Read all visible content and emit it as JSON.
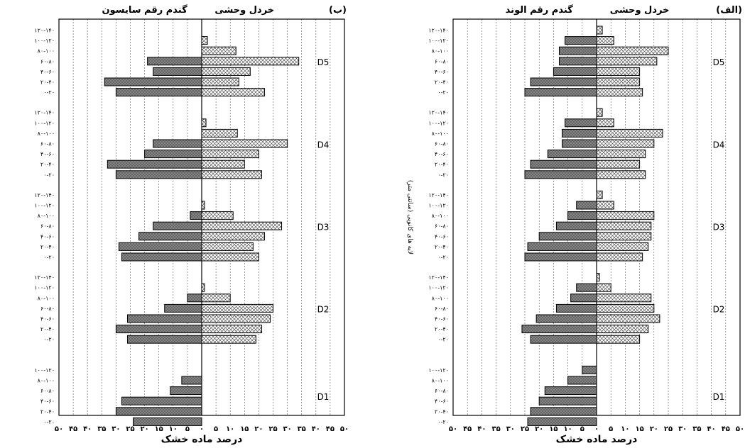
{
  "chart_data": [
    {
      "type": "bar",
      "panel_label": "(ب)",
      "cultivar_label": "گندم رقم سایسون",
      "weed_label": "خردل وحشی",
      "xlabel": "درصد ماده خشک",
      "ylabel": "",
      "xlim": [
        -50,
        50
      ],
      "x_ticks": [
        "۵۰",
        "۴۵",
        "۴۰",
        "۳۵",
        "۳۰",
        "۲۵",
        "۲۰",
        "۱۵",
        "۱۰",
        "۵",
        "۰",
        "۵",
        "۱۰",
        "۱۵",
        "۲۰",
        "۲۵",
        "۳۰",
        "۳۵",
        "۴۰",
        "۴۵",
        "۵۰"
      ],
      "grid": true,
      "groups": [
        {
          "name": "D5",
          "layers": [
            "۱۲۰-۱۴۰",
            "۱۰۰-۱۲۰",
            "۸۰-۱۰۰",
            "۶۰-۸۰",
            "۴۰-۶۰",
            "۲۰-۴۰",
            "۰-۲۰"
          ],
          "wheat": [
            0,
            0,
            0,
            19,
            17,
            34,
            30
          ],
          "mustard": [
            0,
            2,
            12,
            34,
            17,
            13,
            22
          ]
        },
        {
          "name": "D4",
          "layers": [
            "۱۲۰-۱۴۰",
            "۱۰۰-۱۲۰",
            "۸۰-۱۰۰",
            "۶۰-۸۰",
            "۴۰-۶۰",
            "۲۰-۴۰",
            "۰-۲۰"
          ],
          "wheat": [
            0,
            0,
            0,
            17,
            20,
            33,
            30
          ],
          "mustard": [
            0,
            1.5,
            12.5,
            30,
            20,
            15,
            21
          ]
        },
        {
          "name": "D3",
          "layers": [
            "۱۲۰-۱۴۰",
            "۱۰۰-۱۲۰",
            "۸۰-۱۰۰",
            "۶۰-۸۰",
            "۴۰-۶۰",
            "۲۰-۴۰",
            "۰-۲۰"
          ],
          "wheat": [
            0,
            0,
            4,
            17,
            22,
            29,
            28
          ],
          "mustard": [
            0,
            1,
            11,
            28,
            22,
            18,
            20
          ]
        },
        {
          "name": "D2",
          "layers": [
            "۱۲۰-۱۴۰",
            "۱۰۰-۱۲۰",
            "۸۰-۱۰۰",
            "۶۰-۸۰",
            "۴۰-۶۰",
            "۲۰-۴۰",
            "۰-۲۰"
          ],
          "wheat": [
            0,
            0,
            5,
            13,
            26,
            30,
            26
          ],
          "mustard": [
            0,
            1,
            10,
            25,
            24,
            21,
            19
          ]
        },
        {
          "name": "D1",
          "layers": [
            "۱۰۰-۱۲۰",
            "۸۰-۱۰۰",
            "۶۰-۸۰",
            "۴۰-۶۰",
            "۲۰-۴۰",
            "۰-۲۰"
          ],
          "wheat": [
            0,
            7,
            11,
            28,
            30,
            24
          ],
          "mustard": [
            0,
            0,
            0,
            0,
            0,
            0
          ]
        }
      ]
    },
    {
      "type": "bar",
      "panel_label": "(الف)",
      "cultivar_label": "گندم رقم الوند",
      "weed_label": "خردل وحشی",
      "xlabel": "درصد ماده خشک",
      "ylabel": "لایه های کانوپی (سانتی متر)",
      "xlim": [
        -50,
        50
      ],
      "x_ticks": [
        "۵۰",
        "۴۵",
        "۴۰",
        "۳۵",
        "۳۰",
        "۲۵",
        "۲۰",
        "۱۵",
        "۱۰",
        "۵",
        "۰",
        "۵",
        "۱۰",
        "۱۵",
        "۲۰",
        "۲۵",
        "۳۰",
        "۳۵",
        "۴۰",
        "۴۵",
        "۵۰"
      ],
      "grid": true,
      "groups": [
        {
          "name": "D5",
          "layers": [
            "۱۲۰-۱۴۰",
            "۱۰۰-۱۲۰",
            "۸۰-۱۰۰",
            "۶۰-۸۰",
            "۴۰-۶۰",
            "۲۰-۴۰",
            "۰-۲۰"
          ],
          "wheat": [
            0,
            11,
            13,
            13,
            15,
            23,
            25
          ],
          "mustard": [
            2,
            6,
            25,
            21,
            15,
            15,
            16
          ]
        },
        {
          "name": "D4",
          "layers": [
            "۱۲۰-۱۴۰",
            "۱۰۰-۱۲۰",
            "۸۰-۱۰۰",
            "۶۰-۸۰",
            "۴۰-۶۰",
            "۲۰-۴۰",
            "۰-۲۰"
          ],
          "wheat": [
            0,
            11,
            12,
            12,
            17,
            23,
            25
          ],
          "mustard": [
            2,
            6,
            23,
            20,
            17,
            15,
            17
          ]
        },
        {
          "name": "D3",
          "layers": [
            "۱۲۰-۱۴۰",
            "۱۰۰-۱۲۰",
            "۸۰-۱۰۰",
            "۶۰-۸۰",
            "۴۰-۶۰",
            "۲۰-۴۰",
            "۰-۲۰"
          ],
          "wheat": [
            0,
            7,
            10,
            14,
            20,
            24,
            25
          ],
          "mustard": [
            2,
            6,
            20,
            19,
            19,
            18,
            16
          ]
        },
        {
          "name": "D2",
          "layers": [
            "۱۲۰-۱۴۰",
            "۱۰۰-۱۲۰",
            "۸۰-۱۰۰",
            "۶۰-۸۰",
            "۴۰-۶۰",
            "۲۰-۴۰",
            "۰-۲۰"
          ],
          "wheat": [
            0,
            7,
            9,
            14,
            21,
            26,
            23
          ],
          "mustard": [
            1,
            5,
            19,
            20,
            22,
            18,
            15
          ]
        },
        {
          "name": "D1",
          "layers": [
            "۱۰۰-۱۲۰",
            "۸۰-۱۰۰",
            "۶۰-۸۰",
            "۴۰-۶۰",
            "۲۰-۴۰",
            "۰-۲۰"
          ],
          "wheat": [
            5,
            10,
            18,
            20,
            23,
            24
          ],
          "mustard": [
            0,
            0,
            0,
            0,
            0,
            0
          ]
        }
      ]
    }
  ]
}
